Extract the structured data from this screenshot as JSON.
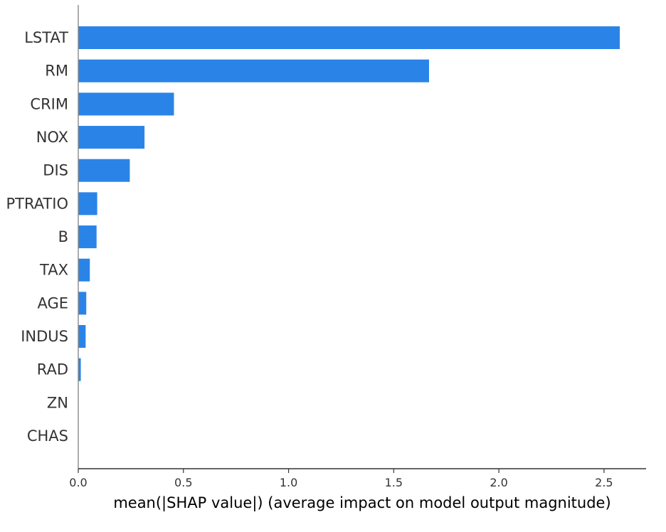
{
  "chart_data": {
    "type": "bar",
    "orientation": "horizontal",
    "categories": [
      "LSTAT",
      "RM",
      "CRIM",
      "NOX",
      "DIS",
      "PTRATIO",
      "B",
      "TAX",
      "AGE",
      "INDUS",
      "RAD",
      "ZN",
      "CHAS"
    ],
    "values": [
      2.575,
      1.668,
      0.455,
      0.315,
      0.245,
      0.09,
      0.087,
      0.055,
      0.038,
      0.035,
      0.012,
      0.0,
      0.0
    ],
    "title": "",
    "xlabel": "mean(|SHAP value|) (average impact on model output magnitude)",
    "ylabel": "",
    "xlim": [
      0,
      2.7
    ],
    "xticks": [
      0.0,
      0.5,
      1.0,
      1.5,
      2.0,
      2.5
    ],
    "xtick_labels": [
      "0.0",
      "0.5",
      "1.0",
      "1.5",
      "2.0",
      "2.5"
    ],
    "grid": false,
    "legend": "none",
    "bar_color": "#2a84e8"
  }
}
